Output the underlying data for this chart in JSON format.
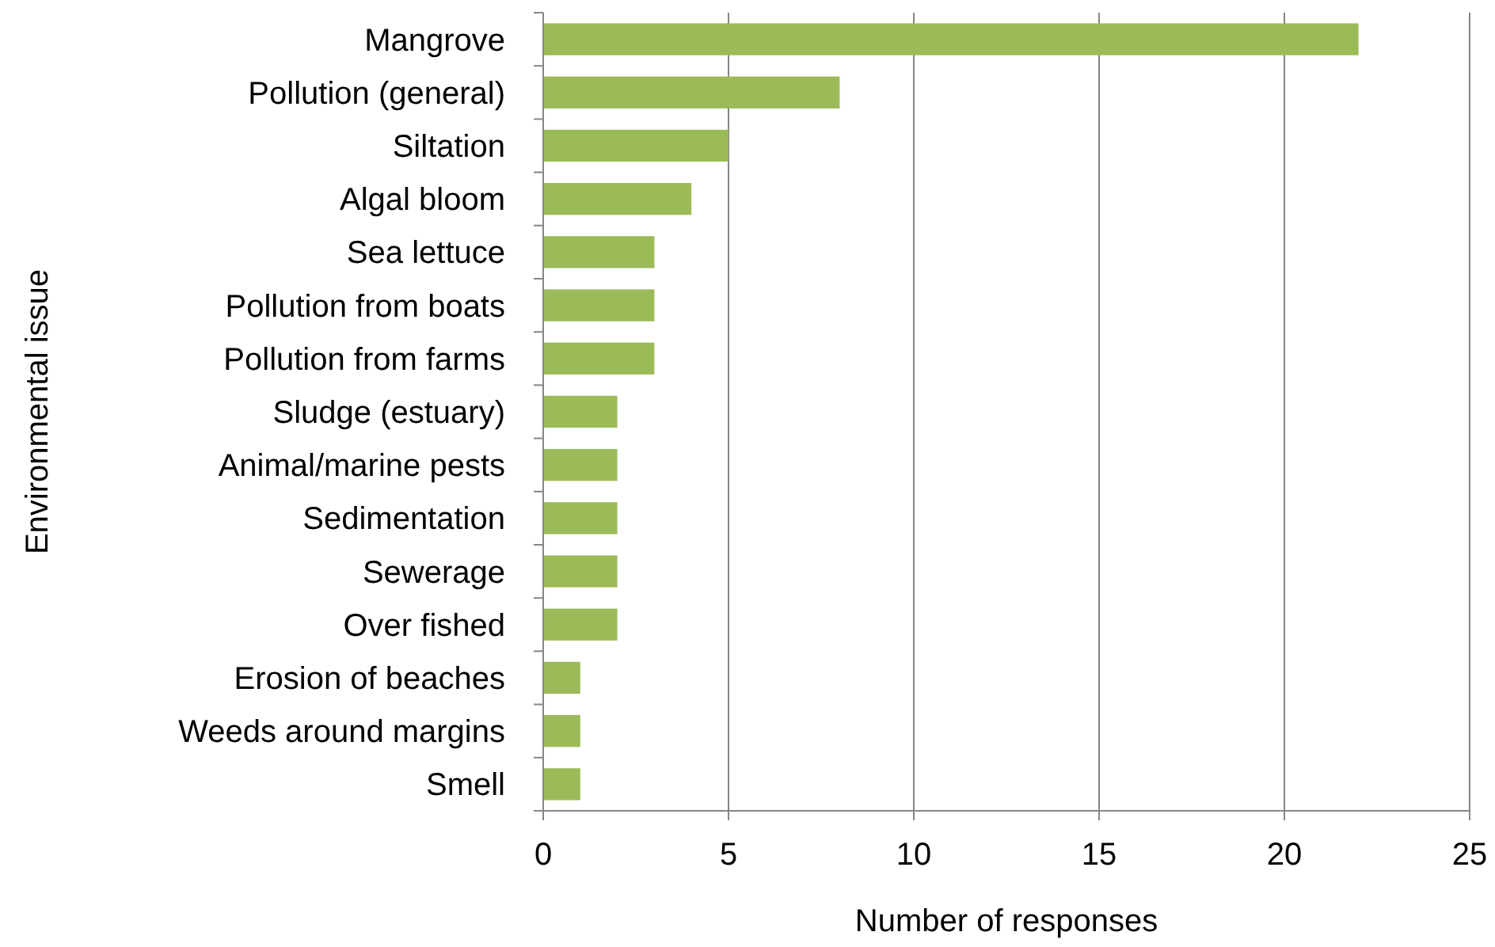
{
  "chart_data": {
    "type": "bar",
    "orientation": "horizontal",
    "xlabel": "Number of responses",
    "ylabel": "Environmental issue",
    "categories": [
      "Mangrove",
      "Pollution (general)",
      "Siltation",
      "Algal bloom",
      "Sea lettuce",
      "Pollution from boats",
      "Pollution from farms",
      "Sludge (estuary)",
      "Animal/marine pests",
      "Sedimentation",
      "Sewerage",
      "Over fished",
      "Erosion of beaches",
      "Weeds around margins",
      "Smell"
    ],
    "values": [
      22,
      8,
      5,
      4,
      3,
      3,
      3,
      2,
      2,
      2,
      2,
      2,
      1,
      1,
      1
    ],
    "color": "#9bbb59",
    "xlim": [
      0,
      25
    ],
    "xticks": [
      0,
      5,
      10,
      15,
      20,
      25
    ],
    "grid": "x"
  }
}
